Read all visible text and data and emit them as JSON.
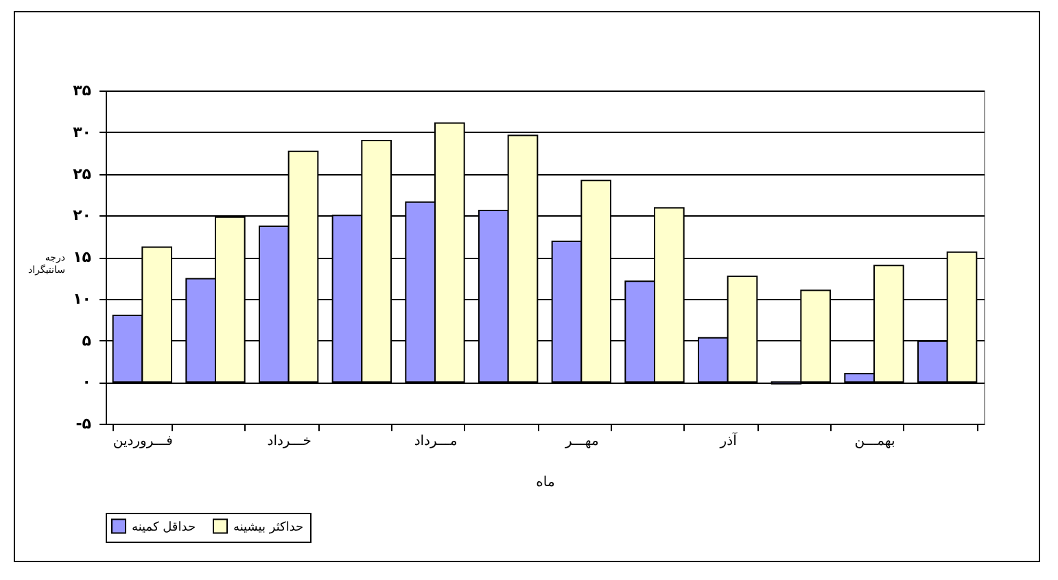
{
  "chart_data": {
    "type": "bar",
    "xlabel": "ماه",
    "ylabel": "درجه سانتیگراد",
    "categories": [
      "فـــروردین",
      null,
      "خـــرداد",
      null,
      "مـــرداد",
      null,
      "مهـــر",
      null,
      "آذر",
      null,
      "بهمـــن",
      null
    ],
    "series": [
      {
        "name": "حداقل کمینه",
        "color": "#9999ff",
        "values": [
          8,
          12.4,
          18.7,
          20,
          21.6,
          20.6,
          16.9,
          12.1,
          5.3,
          -0.2,
          1,
          4.9
        ]
      },
      {
        "name": "حداکثر بیشینه",
        "color": "#ffffcc",
        "values": [
          16.2,
          19.8,
          27.7,
          29,
          31.1,
          29.6,
          24.2,
          20.9,
          12.7,
          11,
          14,
          15.6
        ]
      }
    ],
    "ylim": [
      -5,
      35
    ],
    "yticks": [
      {
        "value": -5,
        "label": "-۵"
      },
      {
        "value": 0,
        "label": "۰"
      },
      {
        "value": 5,
        "label": "۵"
      },
      {
        "value": 10,
        "label": "۱۰"
      },
      {
        "value": 15,
        "label": "۱۵"
      },
      {
        "value": 20,
        "label": "۲۰"
      },
      {
        "value": 25,
        "label": "۲۵"
      },
      {
        "value": 30,
        "label": "۳۰"
      },
      {
        "value": 35,
        "label": "۳۵"
      }
    ],
    "grid": "y",
    "legend": "bottom left"
  }
}
